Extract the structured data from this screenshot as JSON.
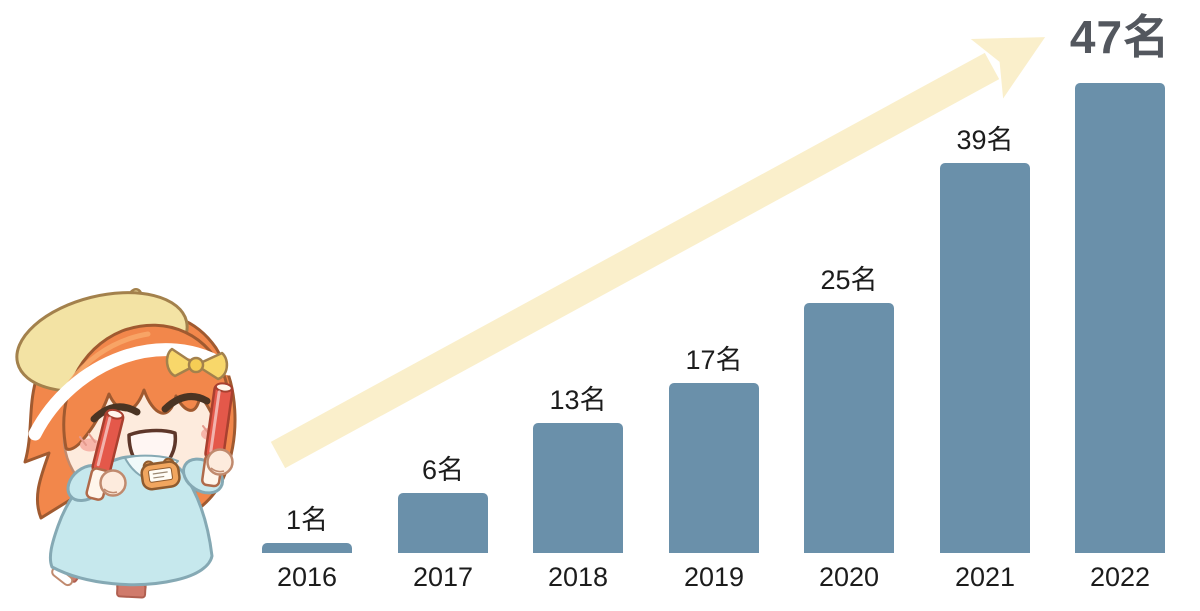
{
  "chart_data": {
    "type": "bar",
    "title": "",
    "xlabel": "",
    "ylabel": "",
    "categories": [
      "2016",
      "2017",
      "2018",
      "2019",
      "2020",
      "2021",
      "2022"
    ],
    "values": [
      1,
      6,
      13,
      17,
      25,
      39,
      47
    ],
    "bar_labels": [
      "1名",
      "6名",
      "13名",
      "17名",
      "25名",
      "39名",
      "47名"
    ],
    "unit": "名",
    "ylim": [
      0,
      47
    ],
    "grid": false,
    "legend": false,
    "axes_visible": false,
    "final_label_emphasized": "47名",
    "colors": {
      "background": "#FFFFFF",
      "bar": "#6A90AA",
      "label": "#1C1C1C",
      "final_label": "#53575E",
      "arrow": "#FAEFCB"
    }
  },
  "mascot": {
    "name": "cheering-chibi-girl",
    "colors": {
      "hair": "#F2874B",
      "beret": "#F3E3A4",
      "bow": "#F8D76A",
      "skin": "#FDEBDD",
      "dress": "#C6E8ED",
      "stick": "#E4584A",
      "shoe": "#D07A6B"
    }
  }
}
